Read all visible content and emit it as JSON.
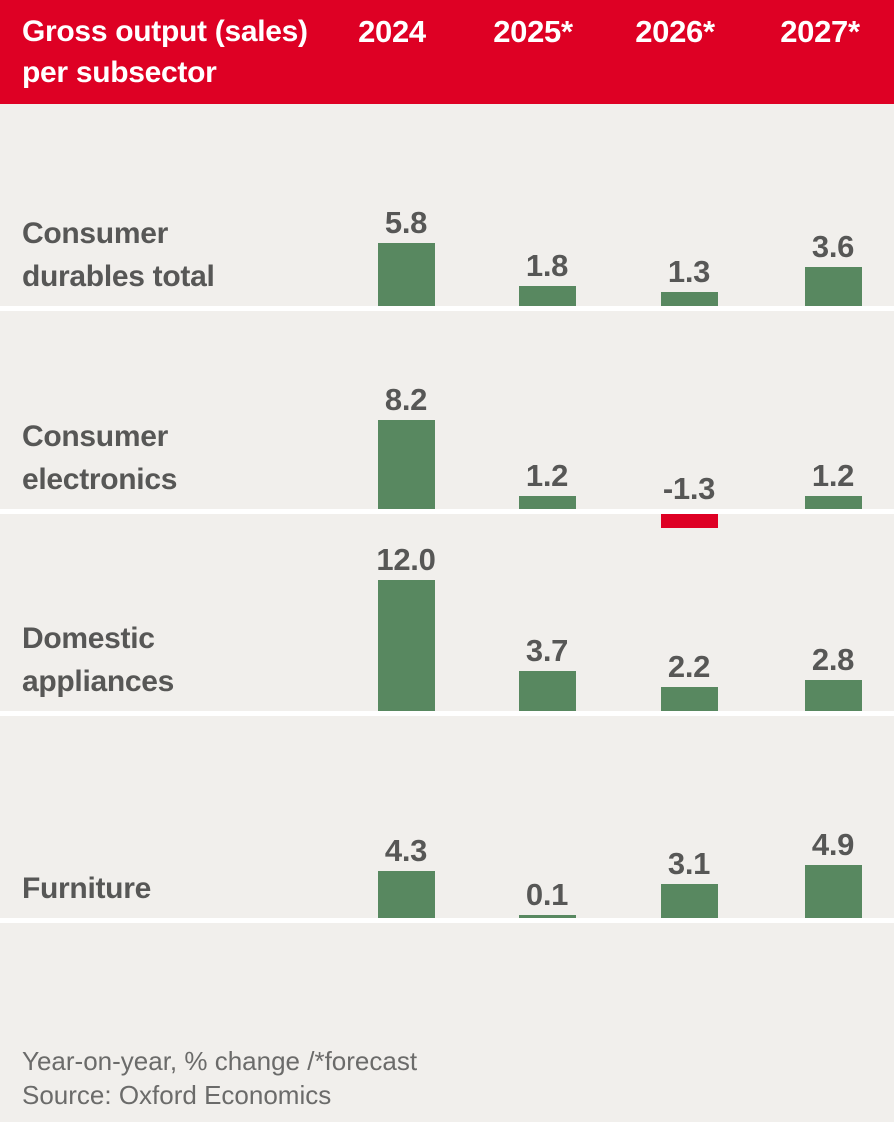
{
  "header": {
    "title_line1": "Gross output (sales)",
    "title_line2": "per subsector",
    "columns": [
      "2024",
      "2025*",
      "2026*",
      "2027*"
    ]
  },
  "chart_data": {
    "type": "bar",
    "title": "Gross output (sales) per subsector",
    "categories": [
      "2024",
      "2025*",
      "2026*",
      "2027*"
    ],
    "unit": "Year-on-year, % change",
    "value_labels_shown": true,
    "legend": "none",
    "grid": false,
    "series": [
      {
        "name": "Consumer durables total",
        "label_lines": [
          "Consumer",
          "durables total"
        ],
        "values": [
          5.8,
          1.8,
          1.3,
          3.6
        ]
      },
      {
        "name": "Consumer electronics",
        "label_lines": [
          "Consumer",
          "electronics"
        ],
        "values": [
          8.2,
          1.2,
          -1.3,
          1.2
        ]
      },
      {
        "name": "Domestic appliances",
        "label_lines": [
          "Domestic",
          "appliances"
        ],
        "values": [
          12.0,
          3.7,
          2.2,
          2.8
        ]
      },
      {
        "name": "Furniture",
        "label_lines": [
          "Furniture"
        ],
        "values": [
          4.3,
          0.1,
          3.1,
          4.9
        ]
      }
    ]
  },
  "footer": {
    "note": "Year-on-year, % change /*forecast",
    "source": "Source: Oxford Economics"
  },
  "colors": {
    "header_bg": "#DE0024",
    "header_text": "#FFFFFF",
    "background": "#F1EFEC",
    "bar_positive": "#588860",
    "bar_negative": "#DE0024",
    "label_text": "#575756",
    "footer_text": "#6B6B6A",
    "separator": "#FFFFFF"
  }
}
